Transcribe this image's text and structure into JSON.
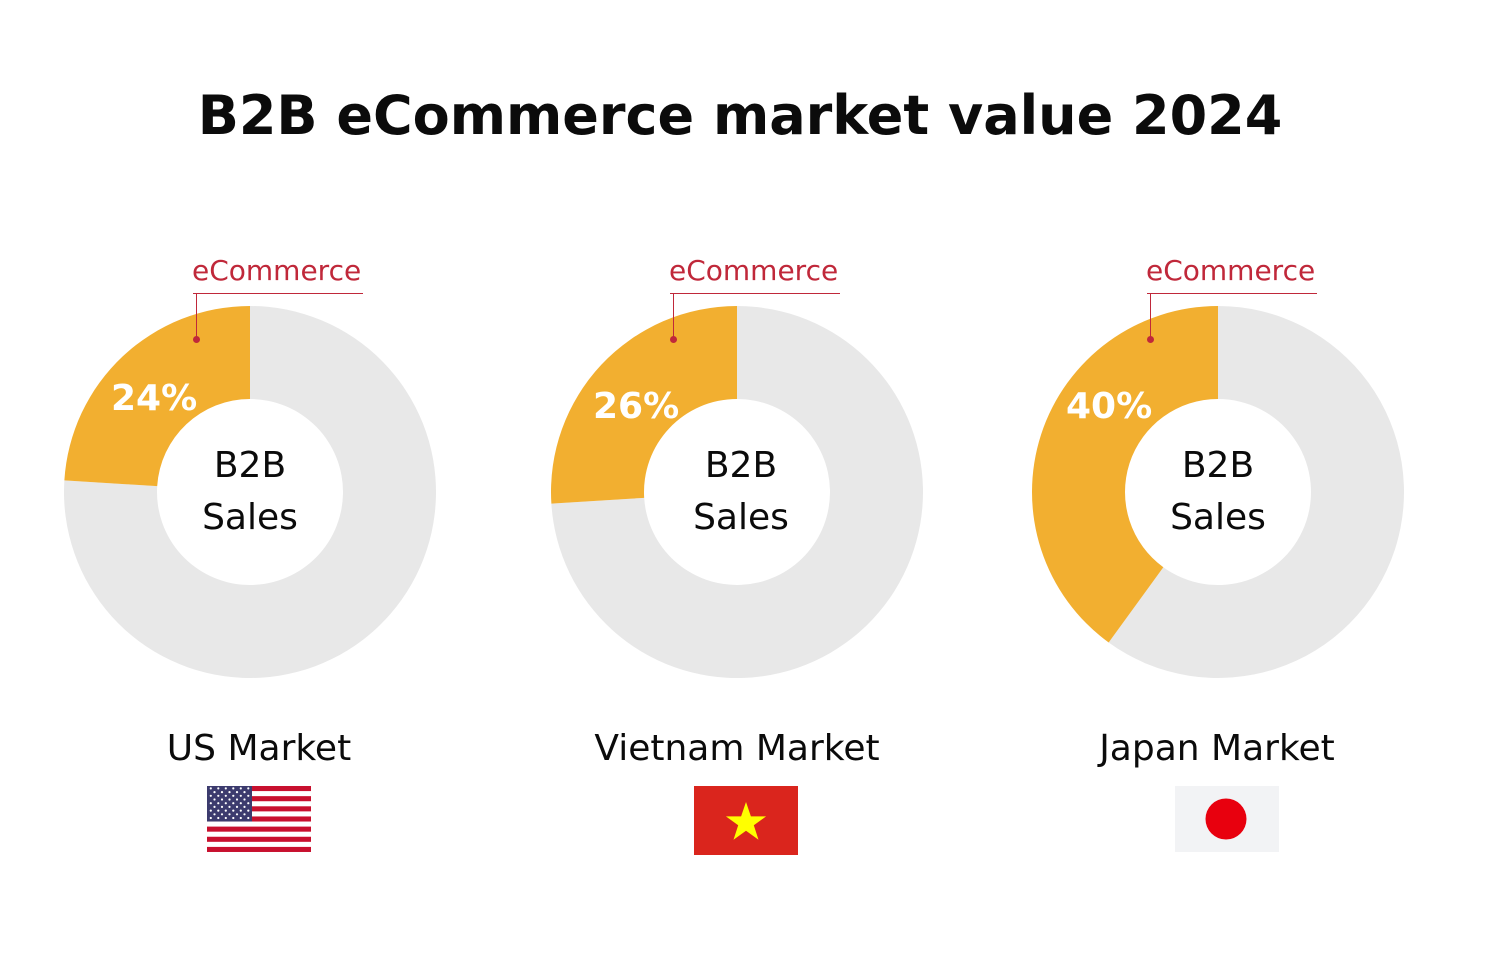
{
  "title": "B2B eCommerce market value 2024",
  "chart_data": [
    {
      "type": "pie",
      "market": "US Market",
      "center_label": "B2B\nSales",
      "slices": [
        {
          "label": "eCommerce",
          "value": 24,
          "display": "24%"
        },
        {
          "label": "",
          "value": 76
        }
      ],
      "flag_icon": "us-flag-icon"
    },
    {
      "type": "pie",
      "market": "Vietnam Market",
      "center_label": "B2B\nSales",
      "slices": [
        {
          "label": "eCommerce",
          "value": 26,
          "display": "26%"
        },
        {
          "label": "",
          "value": 74
        }
      ],
      "flag_icon": "vietnam-flag-icon"
    },
    {
      "type": "pie",
      "market": "Japan Market",
      "center_label": "B2B\nSales",
      "slices": [
        {
          "label": "eCommerce",
          "value": 40,
          "display": "40%"
        },
        {
          "label": "",
          "value": 60
        }
      ],
      "flag_icon": "japan-flag-icon"
    }
  ],
  "colors": {
    "ecommerce": "#F2AF30",
    "remainder": "#E8E8E8",
    "callout": "#C0283A"
  },
  "labels": {
    "b2b": "B2B",
    "sales": "Sales"
  }
}
